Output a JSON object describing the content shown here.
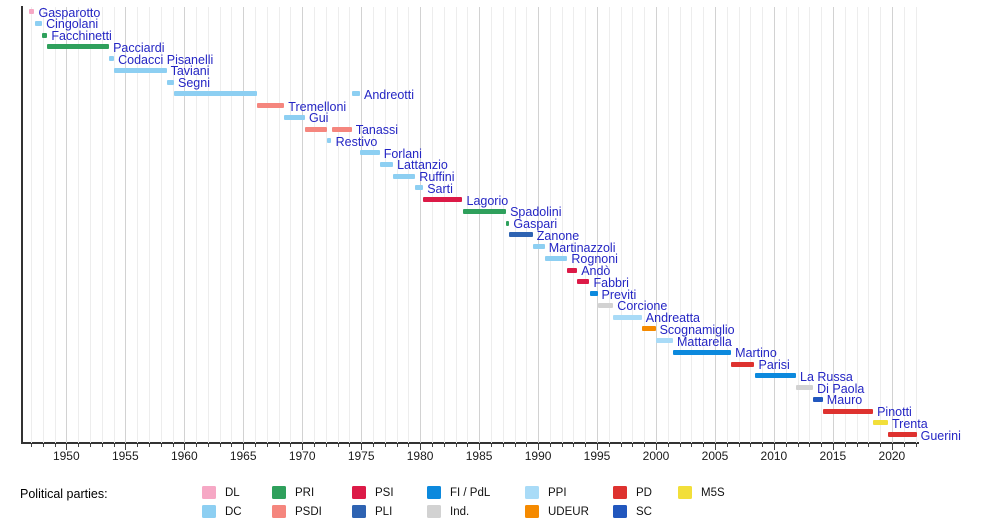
{
  "legend_title": "Political parties:",
  "chart_data": {
    "type": "timeline",
    "legend_title": "Political parties:",
    "axis": {
      "year_start": 1946.2,
      "year_end": 2022.3,
      "grid_start": 1947,
      "grid_end": 2022,
      "labels": [
        1950,
        1955,
        1960,
        1965,
        1970,
        1975,
        1980,
        1985,
        1990,
        1995,
        2000,
        2005,
        2010,
        2015,
        2020
      ]
    },
    "parties": [
      {
        "key": "DL",
        "label": "DL",
        "color": "#F6A8C5"
      },
      {
        "key": "DC",
        "label": "DC",
        "color": "#8DCFF2"
      },
      {
        "key": "PRI",
        "label": "PRI",
        "color": "#2FA05C"
      },
      {
        "key": "PSDI",
        "label": "PSDI",
        "color": "#F5867E"
      },
      {
        "key": "PSI",
        "label": "PSI",
        "color": "#DC1A47"
      },
      {
        "key": "PLI",
        "label": "PLI",
        "color": "#2E63B2"
      },
      {
        "key": "FI/PdL",
        "label": "FI / PdL",
        "color": "#0C89DD"
      },
      {
        "key": "Ind.",
        "label": "Ind.",
        "color": "#D2D2D2"
      },
      {
        "key": "PPI",
        "label": "PPI",
        "color": "#A9DBF7"
      },
      {
        "key": "UDEUR",
        "label": "UDEUR",
        "color": "#F58A00"
      },
      {
        "key": "PD",
        "label": "PD",
        "color": "#DE322F"
      },
      {
        "key": "SC",
        "label": "SC",
        "color": "#2157BE"
      },
      {
        "key": "M5S",
        "label": "M5S",
        "color": "#F2DF3A"
      }
    ],
    "legend_rows": [
      [
        "DL",
        "PRI",
        "PSI",
        "FI/PdL",
        "PPI",
        "PD",
        "M5S"
      ],
      [
        "DC",
        "PSDI",
        "PLI",
        "Ind.",
        "UDEUR",
        "SC"
      ]
    ],
    "ministers": [
      {
        "name": "Gasparotto",
        "party": "DL",
        "segments": [
          [
            1946.85,
            1947.3
          ]
        ]
      },
      {
        "name": "Cingolani",
        "party": "DC",
        "segments": [
          [
            1947.3,
            1947.95
          ]
        ]
      },
      {
        "name": "Facchinetti",
        "party": "PRI",
        "segments": [
          [
            1947.95,
            1948.4
          ]
        ]
      },
      {
        "name": "Pacciardi",
        "party": "PRI",
        "segments": [
          [
            1948.4,
            1953.63
          ]
        ]
      },
      {
        "name": "Codacci Pisanelli",
        "party": "DC",
        "segments": [
          [
            1953.63,
            1954.05
          ]
        ]
      },
      {
        "name": "Taviani",
        "party": "DC",
        "segments": [
          [
            1954.05,
            1958.5
          ]
        ]
      },
      {
        "name": "Segni",
        "party": "DC",
        "segments": [
          [
            1958.5,
            1959.13
          ]
        ]
      },
      {
        "name": "Andreotti",
        "party": "DC",
        "segments": [
          [
            1959.13,
            1966.15
          ],
          [
            1974.2,
            1974.9
          ]
        ]
      },
      {
        "name": "Tremelloni",
        "party": "PSDI",
        "segments": [
          [
            1966.15,
            1968.48
          ]
        ]
      },
      {
        "name": "Gui",
        "party": "DC",
        "segments": [
          [
            1968.48,
            1970.24
          ]
        ]
      },
      {
        "name": "Tanassi",
        "party": "PSDI",
        "segments": [
          [
            1970.24,
            1972.13
          ],
          [
            1972.49,
            1974.2
          ]
        ]
      },
      {
        "name": "Restivo",
        "party": "DC",
        "segments": [
          [
            1972.13,
            1972.49
          ]
        ]
      },
      {
        "name": "Forlani",
        "party": "DC",
        "segments": [
          [
            1974.9,
            1976.57
          ]
        ]
      },
      {
        "name": "Lattanzio",
        "party": "DC",
        "segments": [
          [
            1976.57,
            1977.71
          ]
        ]
      },
      {
        "name": "Ruffini",
        "party": "DC",
        "segments": [
          [
            1977.71,
            1979.59
          ]
        ]
      },
      {
        "name": "Sarti",
        "party": "DC",
        "segments": [
          [
            1979.59,
            1980.26
          ]
        ]
      },
      {
        "name": "Lagorio",
        "party": "PSI",
        "segments": [
          [
            1980.26,
            1983.59
          ]
        ]
      },
      {
        "name": "Spadolini",
        "party": "PRI",
        "segments": [
          [
            1983.59,
            1987.29
          ]
        ]
      },
      {
        "name": "Gaspari",
        "party": "PRI",
        "segments": [
          [
            1987.29,
            1987.57
          ]
        ]
      },
      {
        "name": "Zanone",
        "party": "PLI",
        "segments": [
          [
            1987.57,
            1989.55
          ]
        ]
      },
      {
        "name": "Martinazzoli",
        "party": "DC",
        "segments": [
          [
            1989.55,
            1990.57
          ]
        ]
      },
      {
        "name": "Rognoni",
        "party": "DC",
        "segments": [
          [
            1990.57,
            1992.49
          ]
        ]
      },
      {
        "name": "Andò",
        "party": "PSI",
        "segments": [
          [
            1992.49,
            1993.32
          ]
        ]
      },
      {
        "name": "Fabbri",
        "party": "PSI",
        "segments": [
          [
            1993.32,
            1994.36
          ]
        ]
      },
      {
        "name": "Previti",
        "party": "FI/PdL",
        "segments": [
          [
            1994.36,
            1995.04
          ]
        ]
      },
      {
        "name": "Corcione",
        "party": "Ind.",
        "segments": [
          [
            1995.04,
            1996.38
          ]
        ]
      },
      {
        "name": "Andreatta",
        "party": "PPI",
        "segments": [
          [
            1996.38,
            1998.8
          ]
        ]
      },
      {
        "name": "Scognamiglio",
        "party": "UDEUR",
        "segments": [
          [
            1998.8,
            1999.97
          ]
        ]
      },
      {
        "name": "Mattarella",
        "party": "PPI",
        "segments": [
          [
            1999.97,
            2001.44
          ]
        ]
      },
      {
        "name": "Martino",
        "party": "FI/PdL",
        "segments": [
          [
            2001.44,
            2006.37
          ]
        ]
      },
      {
        "name": "Parisi",
        "party": "PD",
        "segments": [
          [
            2006.37,
            2008.35
          ]
        ]
      },
      {
        "name": "La Russa",
        "party": "FI/PdL",
        "segments": [
          [
            2008.35,
            2011.87
          ]
        ]
      },
      {
        "name": "Di Paola",
        "party": "Ind.",
        "segments": [
          [
            2011.87,
            2013.32
          ]
        ]
      },
      {
        "name": "Mauro",
        "party": "SC",
        "segments": [
          [
            2013.32,
            2014.14
          ]
        ]
      },
      {
        "name": "Pinotti",
        "party": "PD",
        "segments": [
          [
            2014.14,
            2018.41
          ]
        ]
      },
      {
        "name": "Trenta",
        "party": "M5S",
        "segments": [
          [
            2018.41,
            2019.67
          ]
        ]
      },
      {
        "name": "Guerini",
        "party": "PD",
        "segments": [
          [
            2019.67,
            2022.1
          ]
        ]
      }
    ]
  }
}
